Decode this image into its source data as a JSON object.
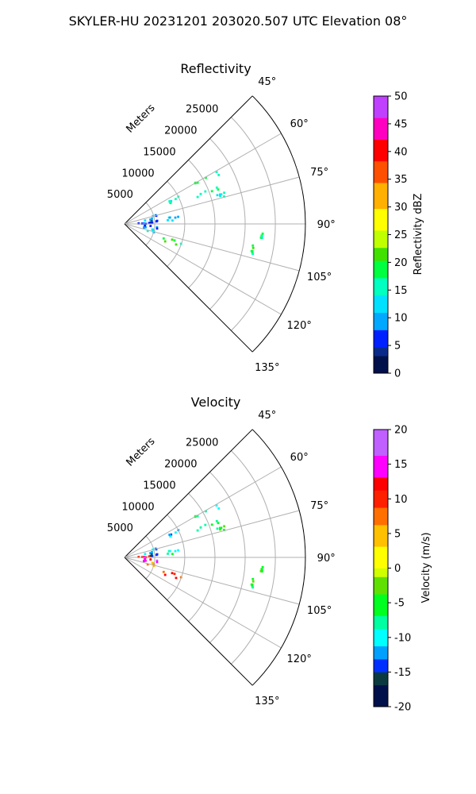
{
  "figure": {
    "title": "SKYLER-HU  20231201  203020.507 UTC Elevation 08°"
  },
  "chart_data": [
    {
      "type": "heatmap",
      "subtype": "polar-sector-radar",
      "title": "Reflectivity",
      "range_axis_label": "Meters",
      "range_ticks": [
        "5000",
        "10000",
        "15000",
        "20000",
        "25000"
      ],
      "range_values": [
        5000,
        10000,
        15000,
        20000,
        25000
      ],
      "rlim": [
        0,
        30000
      ],
      "azimuth_ticks": [
        "45°",
        "60°",
        "75°",
        "90°",
        "105°",
        "120°",
        "135°"
      ],
      "azimuth_values": [
        45,
        60,
        75,
        90,
        105,
        120,
        135
      ],
      "grid": true,
      "colorbar": {
        "label": "Reflectivity dBZ",
        "range": [
          0,
          50
        ],
        "ticks": [
          "0",
          "5",
          "10",
          "15",
          "20",
          "25",
          "30",
          "35",
          "40",
          "45",
          "50"
        ],
        "tick_values": [
          0,
          5,
          10,
          15,
          20,
          25,
          30,
          35,
          40,
          45,
          50
        ],
        "colormap": "pyart-HomeyerRainbow-like"
      },
      "echo_regions": [
        {
          "az": [
            59,
            63
          ],
          "range_m": [
            13000,
            18000
          ],
          "value": 18
        },
        {
          "az": [
            63,
            66
          ],
          "range_m": [
            8000,
            10000
          ],
          "value": 16
        },
        {
          "az": [
            67,
            71
          ],
          "range_m": [
            12500,
            17500
          ],
          "value": 16
        },
        {
          "az": [
            72,
            75
          ],
          "range_m": [
            15500,
            17500
          ],
          "value": 14
        },
        {
          "az": [
            74,
            82
          ],
          "range_m": [
            3000,
            5500
          ],
          "value": 10
        },
        {
          "az": [
            82,
            86
          ],
          "range_m": [
            7000,
            9000
          ],
          "value": 12
        },
        {
          "az": [
            84,
            89
          ],
          "range_m": [
            4000,
            5500
          ],
          "value": 6
        },
        {
          "az": [
            88,
            90
          ],
          "range_m": [
            2000,
            4500
          ],
          "value": 8
        },
        {
          "az": [
            94,
            96
          ],
          "range_m": [
            22500,
            23000
          ],
          "value": 17
        },
        {
          "az": [
            99,
            104
          ],
          "range_m": [
            21500,
            22000
          ],
          "value": 18
        },
        {
          "az": [
            93,
            104
          ],
          "range_m": [
            2500,
            5500
          ],
          "value": 8
        },
        {
          "az": [
            101,
            107
          ],
          "range_m": [
            4000,
            6000
          ],
          "value": 13
        },
        {
          "az": [
            107,
            114
          ],
          "range_m": [
            6000,
            10000
          ],
          "value": 19
        }
      ]
    },
    {
      "type": "heatmap",
      "subtype": "polar-sector-radar",
      "title": "Velocity",
      "range_axis_label": "Meters",
      "range_ticks": [
        "5000",
        "10000",
        "15000",
        "20000",
        "25000"
      ],
      "range_values": [
        5000,
        10000,
        15000,
        20000,
        25000
      ],
      "rlim": [
        0,
        30000
      ],
      "azimuth_ticks": [
        "45°",
        "60°",
        "75°",
        "90°",
        "105°",
        "120°",
        "135°"
      ],
      "azimuth_values": [
        45,
        60,
        75,
        90,
        105,
        120,
        135
      ],
      "grid": true,
      "colorbar": {
        "label": "Velocity (m/s)",
        "range": [
          -20,
          20
        ],
        "ticks": [
          "-20",
          "-15",
          "-10",
          "-5",
          "0",
          "5",
          "10",
          "15",
          "20"
        ],
        "tick_values": [
          -20,
          -15,
          -10,
          -5,
          0,
          5,
          10,
          15,
          20
        ],
        "colormap": "pyart-BuDRd-like"
      },
      "echo_regions": [
        {
          "az": [
            59,
            63
          ],
          "range_m": [
            13000,
            18000
          ],
          "value": -8
        },
        {
          "az": [
            63,
            66
          ],
          "range_m": [
            8000,
            10000
          ],
          "value": -11
        },
        {
          "az": [
            67,
            71
          ],
          "range_m": [
            12500,
            17500
          ],
          "value": -7
        },
        {
          "az": [
            72,
            75
          ],
          "range_m": [
            15500,
            17500
          ],
          "value": -6
        },
        {
          "az": [
            74,
            82
          ],
          "range_m": [
            3000,
            5500
          ],
          "value": -12
        },
        {
          "az": [
            82,
            86
          ],
          "range_m": [
            7000,
            9000
          ],
          "value": -8
        },
        {
          "az": [
            84,
            89
          ],
          "range_m": [
            4000,
            5500
          ],
          "value": -15
        },
        {
          "az": [
            88,
            90
          ],
          "range_m": [
            2000,
            4500
          ],
          "value": 12
        },
        {
          "az": [
            94,
            96
          ],
          "range_m": [
            22500,
            23000
          ],
          "value": -6
        },
        {
          "az": [
            99,
            104
          ],
          "range_m": [
            21500,
            22000
          ],
          "value": -5
        },
        {
          "az": [
            93,
            104
          ],
          "range_m": [
            2500,
            5500
          ],
          "value": 14
        },
        {
          "az": [
            101,
            107
          ],
          "range_m": [
            4000,
            6000
          ],
          "value": 7
        },
        {
          "az": [
            107,
            114
          ],
          "range_m": [
            6000,
            10000
          ],
          "value": 10
        }
      ]
    }
  ]
}
